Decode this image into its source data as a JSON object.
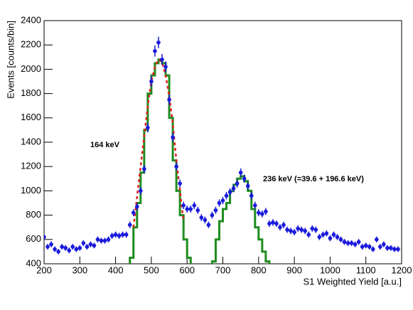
{
  "chart_data": {
    "type": "scatter",
    "xlabel": "S1 Weighted Yield [a.u.]",
    "ylabel": "Events [counts/bin]",
    "xlim": [
      200,
      1200
    ],
    "ylim": [
      400,
      2400
    ],
    "xticks": [
      200,
      300,
      400,
      500,
      600,
      700,
      800,
      900,
      1000,
      1100,
      1200
    ],
    "yticks": [
      400,
      600,
      800,
      1000,
      1200,
      1400,
      1600,
      1800,
      2000,
      2200,
      2400
    ],
    "annotations": [
      "164 keV",
      "236 keV (=39.6 + 196.6 keV)"
    ],
    "points": {
      "color": "#1a1adc",
      "x": [
        200,
        210,
        220,
        230,
        240,
        250,
        260,
        270,
        280,
        290,
        300,
        310,
        320,
        330,
        340,
        350,
        360,
        370,
        380,
        390,
        400,
        410,
        420,
        430,
        440,
        450,
        460,
        470,
        480,
        490,
        500,
        510,
        520,
        530,
        540,
        550,
        560,
        570,
        580,
        590,
        600,
        610,
        620,
        630,
        640,
        650,
        660,
        670,
        680,
        690,
        700,
        710,
        720,
        730,
        740,
        750,
        760,
        770,
        780,
        790,
        800,
        810,
        820,
        830,
        840,
        850,
        860,
        870,
        880,
        890,
        900,
        910,
        920,
        930,
        940,
        950,
        960,
        970,
        980,
        990,
        1000,
        1010,
        1020,
        1030,
        1040,
        1050,
        1060,
        1070,
        1080,
        1090,
        1100,
        1110,
        1120,
        1130,
        1140,
        1150,
        1160,
        1170,
        1180,
        1190
      ],
      "values": [
        620,
        540,
        560,
        520,
        500,
        540,
        530,
        510,
        540,
        520,
        530,
        570,
        540,
        560,
        550,
        600,
        590,
        590,
        600,
        630,
        640,
        630,
        640,
        640,
        720,
        820,
        870,
        1000,
        1180,
        1520,
        1900,
        2150,
        2220,
        2080,
        2020,
        1750,
        1440,
        1200,
        1060,
        880,
        850,
        850,
        880,
        840,
        780,
        760,
        720,
        800,
        840,
        900,
        920,
        960,
        990,
        1020,
        1060,
        1150,
        1100,
        1040,
        960,
        880,
        820,
        810,
        830,
        730,
        740,
        730,
        700,
        720,
        680,
        670,
        660,
        690,
        680,
        670,
        640,
        690,
        680,
        620,
        640,
        650,
        610,
        640,
        620,
        600,
        580,
        570,
        570,
        560,
        580,
        540,
        550,
        540,
        520,
        600,
        540,
        560,
        530,
        530,
        520,
        520
      ],
      "errors": [
        25,
        23,
        24,
        23,
        22,
        23,
        23,
        23,
        23,
        23,
        23,
        24,
        23,
        24,
        23,
        25,
        24,
        24,
        25,
        25,
        25,
        25,
        25,
        25,
        27,
        29,
        30,
        32,
        34,
        39,
        44,
        46,
        47,
        46,
        45,
        42,
        38,
        35,
        33,
        30,
        29,
        29,
        30,
        29,
        28,
        28,
        27,
        28,
        29,
        30,
        30,
        31,
        31,
        32,
        33,
        34,
        33,
        32,
        31,
        30,
        29,
        28,
        29,
        27,
        27,
        27,
        26,
        27,
        26,
        26,
        26,
        26,
        26,
        26,
        25,
        26,
        26,
        25,
        25,
        25,
        25,
        25,
        25,
        24,
        24,
        24,
        24,
        24,
        24,
        23,
        23,
        23,
        23,
        24,
        23,
        24,
        23,
        23,
        23,
        23
      ]
    },
    "histograms": [
      {
        "color": "#1e8c1e",
        "bins": [
          440,
          450,
          460,
          470,
          480,
          490,
          500,
          510,
          520,
          530,
          540,
          550,
          560,
          570,
          580,
          590,
          600,
          610,
          620
        ],
        "counts": [
          450,
          700,
          900,
          1150,
          1500,
          1800,
          1950,
          2050,
          2080,
          2050,
          1950,
          1600,
          1250,
          1000,
          800,
          600,
          450,
          380
        ]
      },
      {
        "color": "#1e8c1e",
        "bins": [
          670,
          680,
          690,
          700,
          710,
          720,
          730,
          740,
          750,
          760,
          770,
          780,
          790,
          800,
          810,
          820,
          830
        ],
        "counts": [
          420,
          600,
          750,
          850,
          900,
          1000,
          1050,
          1100,
          1120,
          1080,
          1000,
          850,
          700,
          600,
          500,
          420
        ]
      }
    ],
    "fit": {
      "color": "#e02020",
      "x": [
        450,
        460,
        470,
        480,
        490,
        500,
        510,
        520,
        530,
        540,
        550,
        560,
        570,
        580,
        590
      ],
      "values": [
        700,
        950,
        1200,
        1450,
        1700,
        1900,
        2020,
        2080,
        2060,
        1950,
        1780,
        1550,
        1250,
        1000,
        750
      ]
    }
  }
}
